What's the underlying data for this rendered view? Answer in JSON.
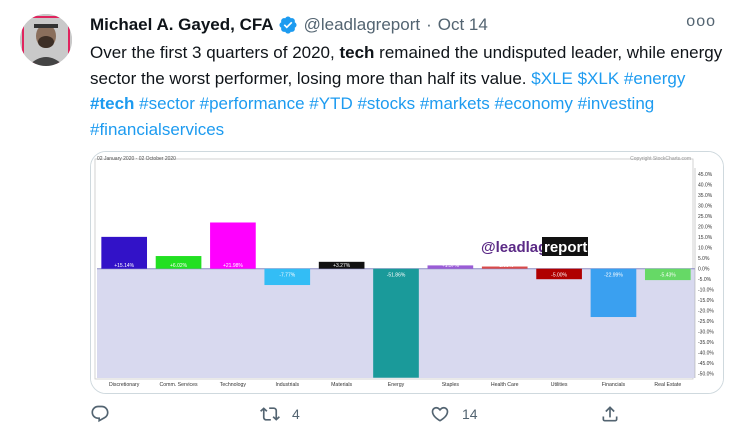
{
  "tweet": {
    "author_name": "Michael A. Gayed, CFA",
    "handle": "@leadlagreport",
    "separator": "·",
    "date": "Oct 14",
    "more_label": "ooo",
    "text": {
      "p1": "Over the first 3 quarters of 2020, ",
      "bold1": "tech",
      "p2": " remained the undisputed leader, while energy sector the worst performer, losing more than half its value. "
    },
    "tags": [
      "$XLE",
      "$XLK",
      "#energy",
      "#tech",
      "#sector",
      "#performance",
      "#YTD",
      "#stocks",
      "#markets",
      "#economy",
      "#investing",
      "#financialservices"
    ]
  },
  "actions": {
    "reply_count": "",
    "retweet_count": "4",
    "like_count": "14"
  },
  "icons": {
    "verified": "verified-badge-icon",
    "reply": "reply-icon",
    "retweet": "retweet-icon",
    "like": "heart-icon",
    "share": "share-icon"
  },
  "colors": {
    "accent": "#1d9bf0",
    "muted": "#536471"
  },
  "chart_data": {
    "type": "bar",
    "date_range": "02 January 2020 - 02 October 2020",
    "copyright": "Copyright StockCharts.com",
    "watermark_a": "@leadlag",
    "watermark_b": "report",
    "categories": [
      "Discretionary",
      "Comm. Services",
      "Technology",
      "Industrials",
      "Materials",
      "Energy",
      "Staples",
      "Health Care",
      "Utilities",
      "Financials",
      "Real Estate"
    ],
    "values": [
      15.14,
      6.02,
      21.98,
      -7.77,
      3.27,
      -51.86,
      1.57,
      1.03,
      -5.0,
      -22.99,
      -5.43
    ],
    "value_labels": [
      "+15.14%",
      "+6.02%",
      "+21.98%",
      "-7.77%",
      "+3.27%",
      "-51.86%",
      "+1.57%",
      "+1.03%",
      "-5.00%",
      "-22.99%",
      "-5.43%"
    ],
    "colors": [
      "#3212c8",
      "#22e022",
      "#ff00ff",
      "#33bdf5",
      "#111111",
      "#1a9a9a",
      "#9a5cd6",
      "#d94a4a",
      "#b00000",
      "#3aa0f0",
      "#66d966"
    ],
    "ylim": [
      -52,
      46
    ],
    "y_ticks": [
      45,
      40,
      35,
      30,
      25,
      20,
      15,
      10,
      5,
      0,
      -5,
      -10,
      -15,
      -20,
      -25,
      -30,
      -35,
      -40,
      -45,
      -50
    ],
    "grid": false
  }
}
